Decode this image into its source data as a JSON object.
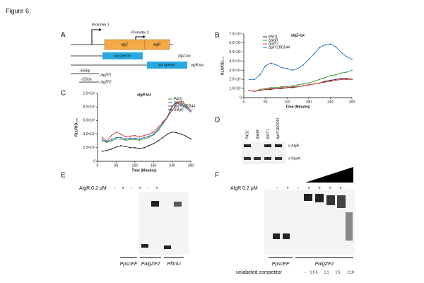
{
  "figure_title": "Figure 6.",
  "panel_labels": [
    "A",
    "B",
    "C",
    "D",
    "E",
    "F"
  ],
  "panel_a": {
    "promoter1": "Promoter 1",
    "promoter2": "Promoter 2",
    "gene1": "algZ",
    "gene2": "algR",
    "lux1": "lux operon",
    "lux2": "lux operon",
    "construct1": "algZ-lux",
    "construct2": "algR-lux",
    "len1": "-565bp",
    "frag1": "algZF1",
    "len2": "-315bp",
    "frag2": "algZF2"
  },
  "chart_data": [
    {
      "type": "line",
      "title": "algZ-lux",
      "xlabel": "Time (Minutes)",
      "ylabel": "RLU/OD₆₀₀",
      "x": [
        15,
        30,
        45,
        60,
        75,
        90,
        105,
        120,
        135,
        150,
        165,
        180,
        195,
        210,
        225,
        240,
        255,
        270,
        285,
        300
      ],
      "xlim": [
        0,
        300
      ],
      "xticks": [
        0,
        60,
        120,
        180,
        240,
        300
      ],
      "ylim": [
        0,
        70000
      ],
      "yticks": [
        0,
        {
          "value": 10000,
          "label": "1.0×10⁴"
        },
        {
          "value": 20000,
          "label": "2.0×10⁴"
        },
        {
          "value": 30000,
          "label": "3.0×10⁴"
        },
        {
          "value": 40000,
          "label": "4.0×10⁴"
        },
        {
          "value": 50000,
          "label": "5.0×10⁴"
        },
        {
          "value": 60000,
          "label": "6.0×10⁴"
        },
        {
          "value": 70000,
          "label": "7.0×10⁴"
        }
      ],
      "series": [
        {
          "name": "PAO1",
          "color": "#222222",
          "values": [
            8000,
            7000,
            8000,
            9000,
            9000,
            10000,
            10000,
            11000,
            11000,
            12000,
            13000,
            14000,
            15000,
            16000,
            18000,
            19000,
            20000,
            21000,
            21000,
            20000
          ]
        },
        {
          "name": "ΔalgR",
          "color": "#3a9a3a",
          "values": [
            8000,
            7000,
            9000,
            10000,
            11000,
            11000,
            12000,
            12000,
            13000,
            14000,
            15000,
            16000,
            18000,
            20000,
            22000,
            24000,
            25000,
            27000,
            28000,
            30000
          ]
        },
        {
          "name": "ΔpilY1",
          "color": "#d43a3a",
          "values": [
            8000,
            7000,
            8000,
            9000,
            10000,
            10000,
            11000,
            11000,
            12000,
            12000,
            13000,
            14000,
            15000,
            16000,
            17000,
            18000,
            19000,
            20000,
            20000,
            20000
          ]
        },
        {
          "name": "ΔpilY1RD544",
          "color": "#2f6fc4",
          "values": [
            20000,
            20000,
            25000,
            35000,
            38000,
            36000,
            33000,
            32000,
            30000,
            32000,
            36000,
            42000,
            48000,
            55000,
            58000,
            59000,
            56000,
            50000,
            45000,
            42000
          ]
        }
      ]
    },
    {
      "type": "line",
      "title": "algR-lux",
      "xlabel": "Time (Minutes)",
      "ylabel": "RLU/OD₆₀₀",
      "x": [
        15,
        30,
        45,
        60,
        75,
        90,
        105,
        120,
        135,
        150,
        165,
        180,
        195,
        210,
        225,
        240,
        255,
        270,
        285,
        300
      ],
      "xlim": [
        0,
        300
      ],
      "xticks": [
        0,
        60,
        120,
        180,
        240,
        300
      ],
      "ylim": [
        0,
        100000
      ],
      "yticks": [
        0,
        {
          "value": 20000,
          "label": "2.0×10⁴"
        },
        {
          "value": 40000,
          "label": "4.0×10⁴"
        },
        {
          "value": 60000,
          "label": "6.0×10⁴"
        },
        {
          "value": 80000,
          "label": "8.0×10⁴"
        },
        {
          "value": 100000,
          "label": "1.0×10⁵"
        }
      ],
      "series": [
        {
          "name": "PAO1",
          "color": "#3a9a3a",
          "values": [
            30000,
            28000,
            30000,
            33000,
            33000,
            31000,
            32000,
            32000,
            31000,
            33000,
            35000,
            39000,
            45000,
            55000,
            65000,
            80000,
            87000,
            85000,
            80000,
            75000
          ]
        },
        {
          "name": "ΔpilY1",
          "color": "#2f6fc4",
          "values": [
            32000,
            29000,
            32000,
            35000,
            35000,
            33000,
            34000,
            34000,
            33000,
            35000,
            37000,
            40000,
            47000,
            56000,
            66000,
            82000,
            86000,
            83000,
            78000,
            73000
          ]
        },
        {
          "name": "ΔpilY1RD544",
          "color": "#d43a3a",
          "values": [
            35000,
            30000,
            38000,
            43000,
            40000,
            36000,
            37000,
            38000,
            36000,
            38000,
            40000,
            43000,
            50000,
            58000,
            65000,
            75000,
            85000,
            88000,
            83000,
            75000
          ]
        },
        {
          "name": "ΔalgU",
          "color": "#222222",
          "values": [
            15000,
            16000,
            18000,
            21000,
            23000,
            22000,
            20000,
            20000,
            19000,
            20000,
            23000,
            26000,
            30000,
            35000,
            40000,
            43000,
            42000,
            40000,
            37000,
            33000
          ]
        }
      ]
    }
  ],
  "panel_d": {
    "lanes": [
      "PAO1",
      "ΔalgR",
      "ΔpilY1",
      "ΔpilY1RD544"
    ],
    "band1": "α AlgR",
    "band2": "α RpoA"
  },
  "panel_e": {
    "protein": "AlgR 0.2 μM",
    "signs": [
      "-",
      "+",
      "-",
      "+",
      "-",
      "+"
    ],
    "probes": [
      "PpscEF",
      "PalgZF2",
      "PfimU"
    ]
  },
  "panel_f": {
    "protein": "AlgR 0.2 μM",
    "signs": [
      "-",
      "+",
      "-",
      "+",
      "+",
      "+",
      "+"
    ],
    "probes": [
      "PpscEF",
      "PalgZF2"
    ],
    "competitor": "unlabeled competitor",
    "ratios": [
      "-",
      "1:0.5",
      "1:1",
      "1:5",
      "1:10"
    ]
  }
}
